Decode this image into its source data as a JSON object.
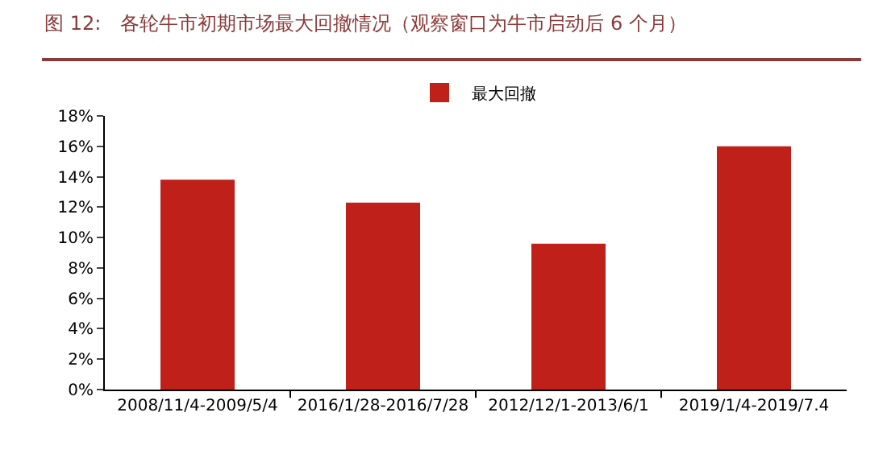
{
  "chart_data": {
    "type": "bar",
    "title": "图 12:　各轮牛市初期市场最大回撤情况（观察窗口为牛市启动后 6 个月）",
    "categories": [
      "2008/11/4-2009/5/4",
      "2016/1/28-2016/7/28",
      "2012/12/1-2013/6/1",
      "2019/1/4-2019/7.4"
    ],
    "series": [
      {
        "name": "最大回撤",
        "color": "#c0201a",
        "values": [
          13.8,
          12.3,
          9.6,
          16.0
        ]
      }
    ],
    "ylim": [
      0,
      18
    ],
    "yticks": [
      {
        "value": 0,
        "label": "0%"
      },
      {
        "value": 2,
        "label": "2%"
      },
      {
        "value": 4,
        "label": "4%"
      },
      {
        "value": 6,
        "label": "6%"
      },
      {
        "value": 8,
        "label": "8%"
      },
      {
        "value": 10,
        "label": "10%"
      },
      {
        "value": 12,
        "label": "12%"
      },
      {
        "value": 14,
        "label": "14%"
      },
      {
        "value": 16,
        "label": "16%"
      },
      {
        "value": 18,
        "label": "18%"
      }
    ],
    "grid": false,
    "legend": "top"
  }
}
